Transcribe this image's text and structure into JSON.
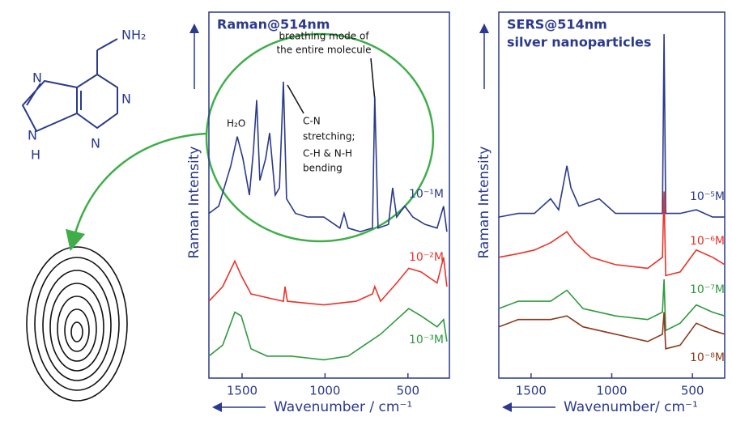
{
  "molecule": {
    "atoms": [
      "NH₂",
      "N",
      "N",
      "N",
      "N",
      "H"
    ]
  },
  "chart_data": [
    {
      "type": "line",
      "title": "Raman@514nm",
      "ylabel": "Raman Intensity",
      "xlabel": "Wavenumber / cm⁻¹",
      "xlim": [
        1700,
        250
      ],
      "ylim": [
        0,
        100
      ],
      "xticks": [
        1500,
        1000,
        500
      ],
      "annotations": [
        "H₂O",
        "breathing mode of",
        "the entire molecule",
        "C-N",
        "stretching;",
        "C-H & N-H",
        "bending"
      ],
      "series": [
        {
          "name": "10⁻¹M",
          "color": "#2b3a8c",
          "x": [
            1700,
            1641,
            1568,
            1529,
            1495,
            1456,
            1432,
            1412,
            1393,
            1358,
            1334,
            1300,
            1275,
            1251,
            1232,
            1178,
            1105,
            1007,
            910,
            885,
            861,
            787,
            714,
            700,
            680,
            617,
            592,
            568,
            519,
            470,
            397,
            324,
            285,
            265
          ],
          "values": [
            45,
            47,
            58,
            66,
            60,
            50,
            62,
            76,
            54,
            60,
            67,
            50,
            52,
            81,
            49,
            45,
            44,
            44,
            41,
            45,
            41,
            40,
            41,
            77,
            41,
            42,
            52,
            44,
            47,
            44,
            42,
            41,
            47,
            40
          ]
        },
        {
          "name": "10⁻²M",
          "color": "#e8342a",
          "x": [
            1700,
            1617,
            1544,
            1505,
            1446,
            1349,
            1251,
            1241,
            1227,
            1007,
            812,
            714,
            700,
            665,
            568,
            495,
            421,
            324,
            285,
            265
          ],
          "values": [
            21,
            25,
            32,
            28,
            23,
            22,
            21,
            25,
            21,
            20,
            21,
            23,
            25,
            21,
            26,
            30,
            29,
            26,
            33,
            25
          ]
        },
        {
          "name": "10⁻³M",
          "color": "#2e9a3e",
          "x": [
            1700,
            1617,
            1544,
            1505,
            1446,
            1349,
            1202,
            1007,
            861,
            763,
            665,
            568,
            495,
            421,
            324,
            285,
            265
          ],
          "values": [
            6,
            9,
            18,
            17,
            8,
            6,
            6,
            5,
            6,
            9,
            12,
            16,
            19,
            17,
            14,
            16,
            10
          ]
        }
      ]
    },
    {
      "type": "line",
      "title": "SERS@514nm",
      "subtitle": "silver nanoparticles",
      "ylabel": "Raman Intensity",
      "xlabel": "Wavenumber/ cm⁻¹",
      "xlim": [
        1700,
        300
      ],
      "ylim": [
        0,
        100
      ],
      "xticks": [
        1500,
        1000,
        500
      ],
      "series": [
        {
          "name": "10⁻⁵M",
          "color": "#2b3a8c",
          "x": [
            1700,
            1580,
            1479,
            1379,
            1329,
            1278,
            1253,
            1203,
            1078,
            977,
            877,
            777,
            686,
            676,
            666,
            576,
            476,
            375,
            300
          ],
          "values": [
            44,
            45,
            45,
            49,
            46,
            58,
            52,
            47,
            49,
            45,
            45,
            45,
            45,
            94,
            45,
            45,
            46,
            44,
            44
          ]
        },
        {
          "name": "10⁻⁶M",
          "color": "#e8342a",
          "x": [
            1700,
            1580,
            1479,
            1379,
            1278,
            1228,
            1128,
            977,
            777,
            686,
            676,
            666,
            576,
            476,
            375,
            300
          ],
          "values": [
            33,
            34,
            35,
            37,
            40,
            37,
            33,
            31,
            30,
            33,
            51,
            28,
            29,
            35,
            33,
            31
          ]
        },
        {
          "name": "10⁻⁷M",
          "color": "#2e9a3e",
          "x": [
            1700,
            1580,
            1379,
            1278,
            1178,
            977,
            777,
            686,
            676,
            666,
            576,
            476,
            375,
            300
          ],
          "values": [
            19,
            21,
            21,
            24,
            19,
            17,
            16,
            18,
            27,
            13,
            15,
            20,
            18,
            17
          ]
        },
        {
          "name": "10⁻⁸M",
          "color": "#8b3a1a",
          "x": [
            1700,
            1580,
            1379,
            1278,
            1178,
            977,
            777,
            686,
            676,
            666,
            576,
            476,
            375,
            300
          ],
          "values": [
            14,
            16,
            16,
            17,
            14,
            12,
            10,
            12,
            18,
            8,
            9,
            15,
            13,
            12
          ]
        }
      ]
    }
  ]
}
